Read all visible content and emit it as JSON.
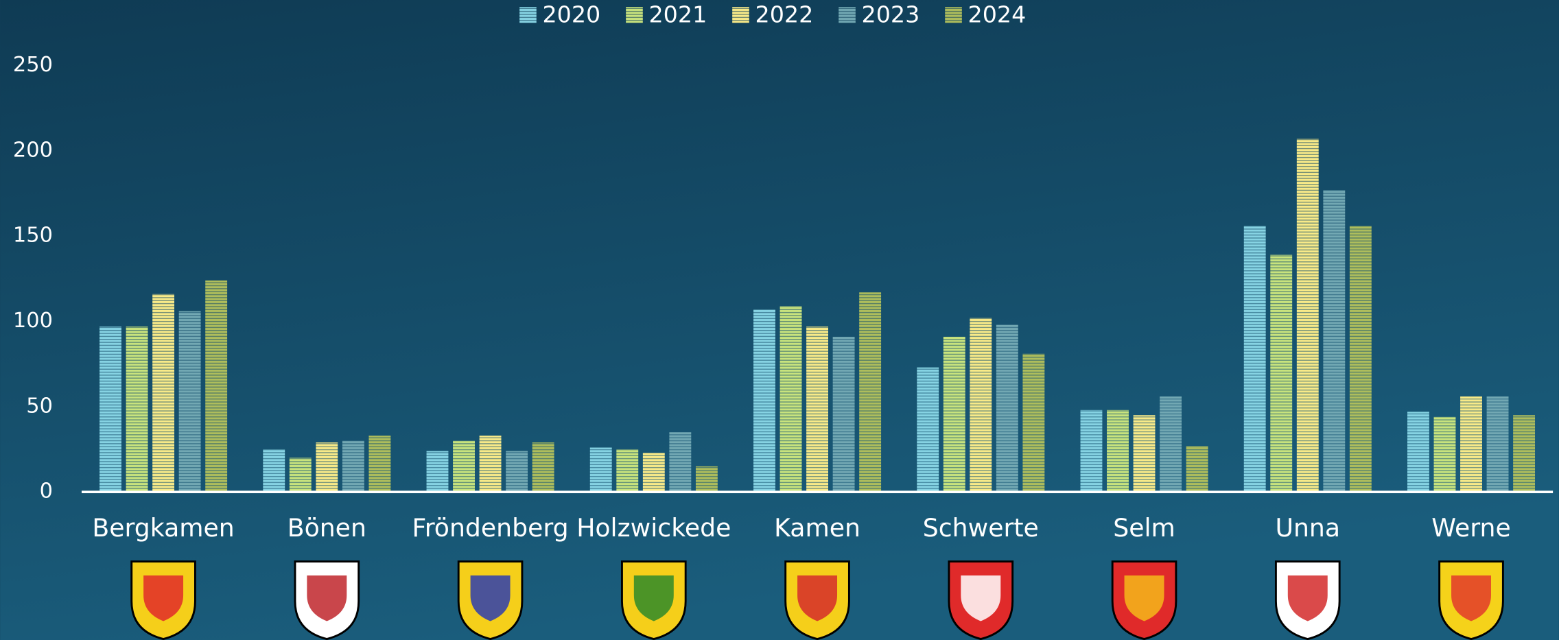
{
  "chart_data": {
    "type": "bar",
    "categories": [
      "Bergkamen",
      "Bönen",
      "Fröndenberg",
      "Holzwickede",
      "Kamen",
      "Schwerte",
      "Selm",
      "Unna",
      "Werne"
    ],
    "series": [
      {
        "name": "2020",
        "color": "#86d3e3",
        "values": [
          97,
          25,
          24,
          26,
          107,
          73,
          48,
          156,
          47
        ]
      },
      {
        "name": "2021",
        "color": "#c8e37d",
        "values": [
          97,
          20,
          30,
          25,
          109,
          91,
          48,
          139,
          44
        ]
      },
      {
        "name": "2022",
        "color": "#f8ea88",
        "values": [
          116,
          29,
          33,
          23,
          97,
          102,
          45,
          207,
          56
        ]
      },
      {
        "name": "2023",
        "color": "#72a8b3",
        "values": [
          106,
          30,
          24,
          35,
          91,
          98,
          56,
          177,
          56
        ]
      },
      {
        "name": "2024",
        "color": "#aebd5c",
        "values": [
          124,
          33,
          29,
          15,
          117,
          81,
          27,
          156,
          45
        ]
      }
    ],
    "ylim": [
      0,
      250
    ],
    "yticks": [
      0,
      50,
      100,
      150,
      200,
      250
    ],
    "grid": false,
    "legend": "top"
  }
}
